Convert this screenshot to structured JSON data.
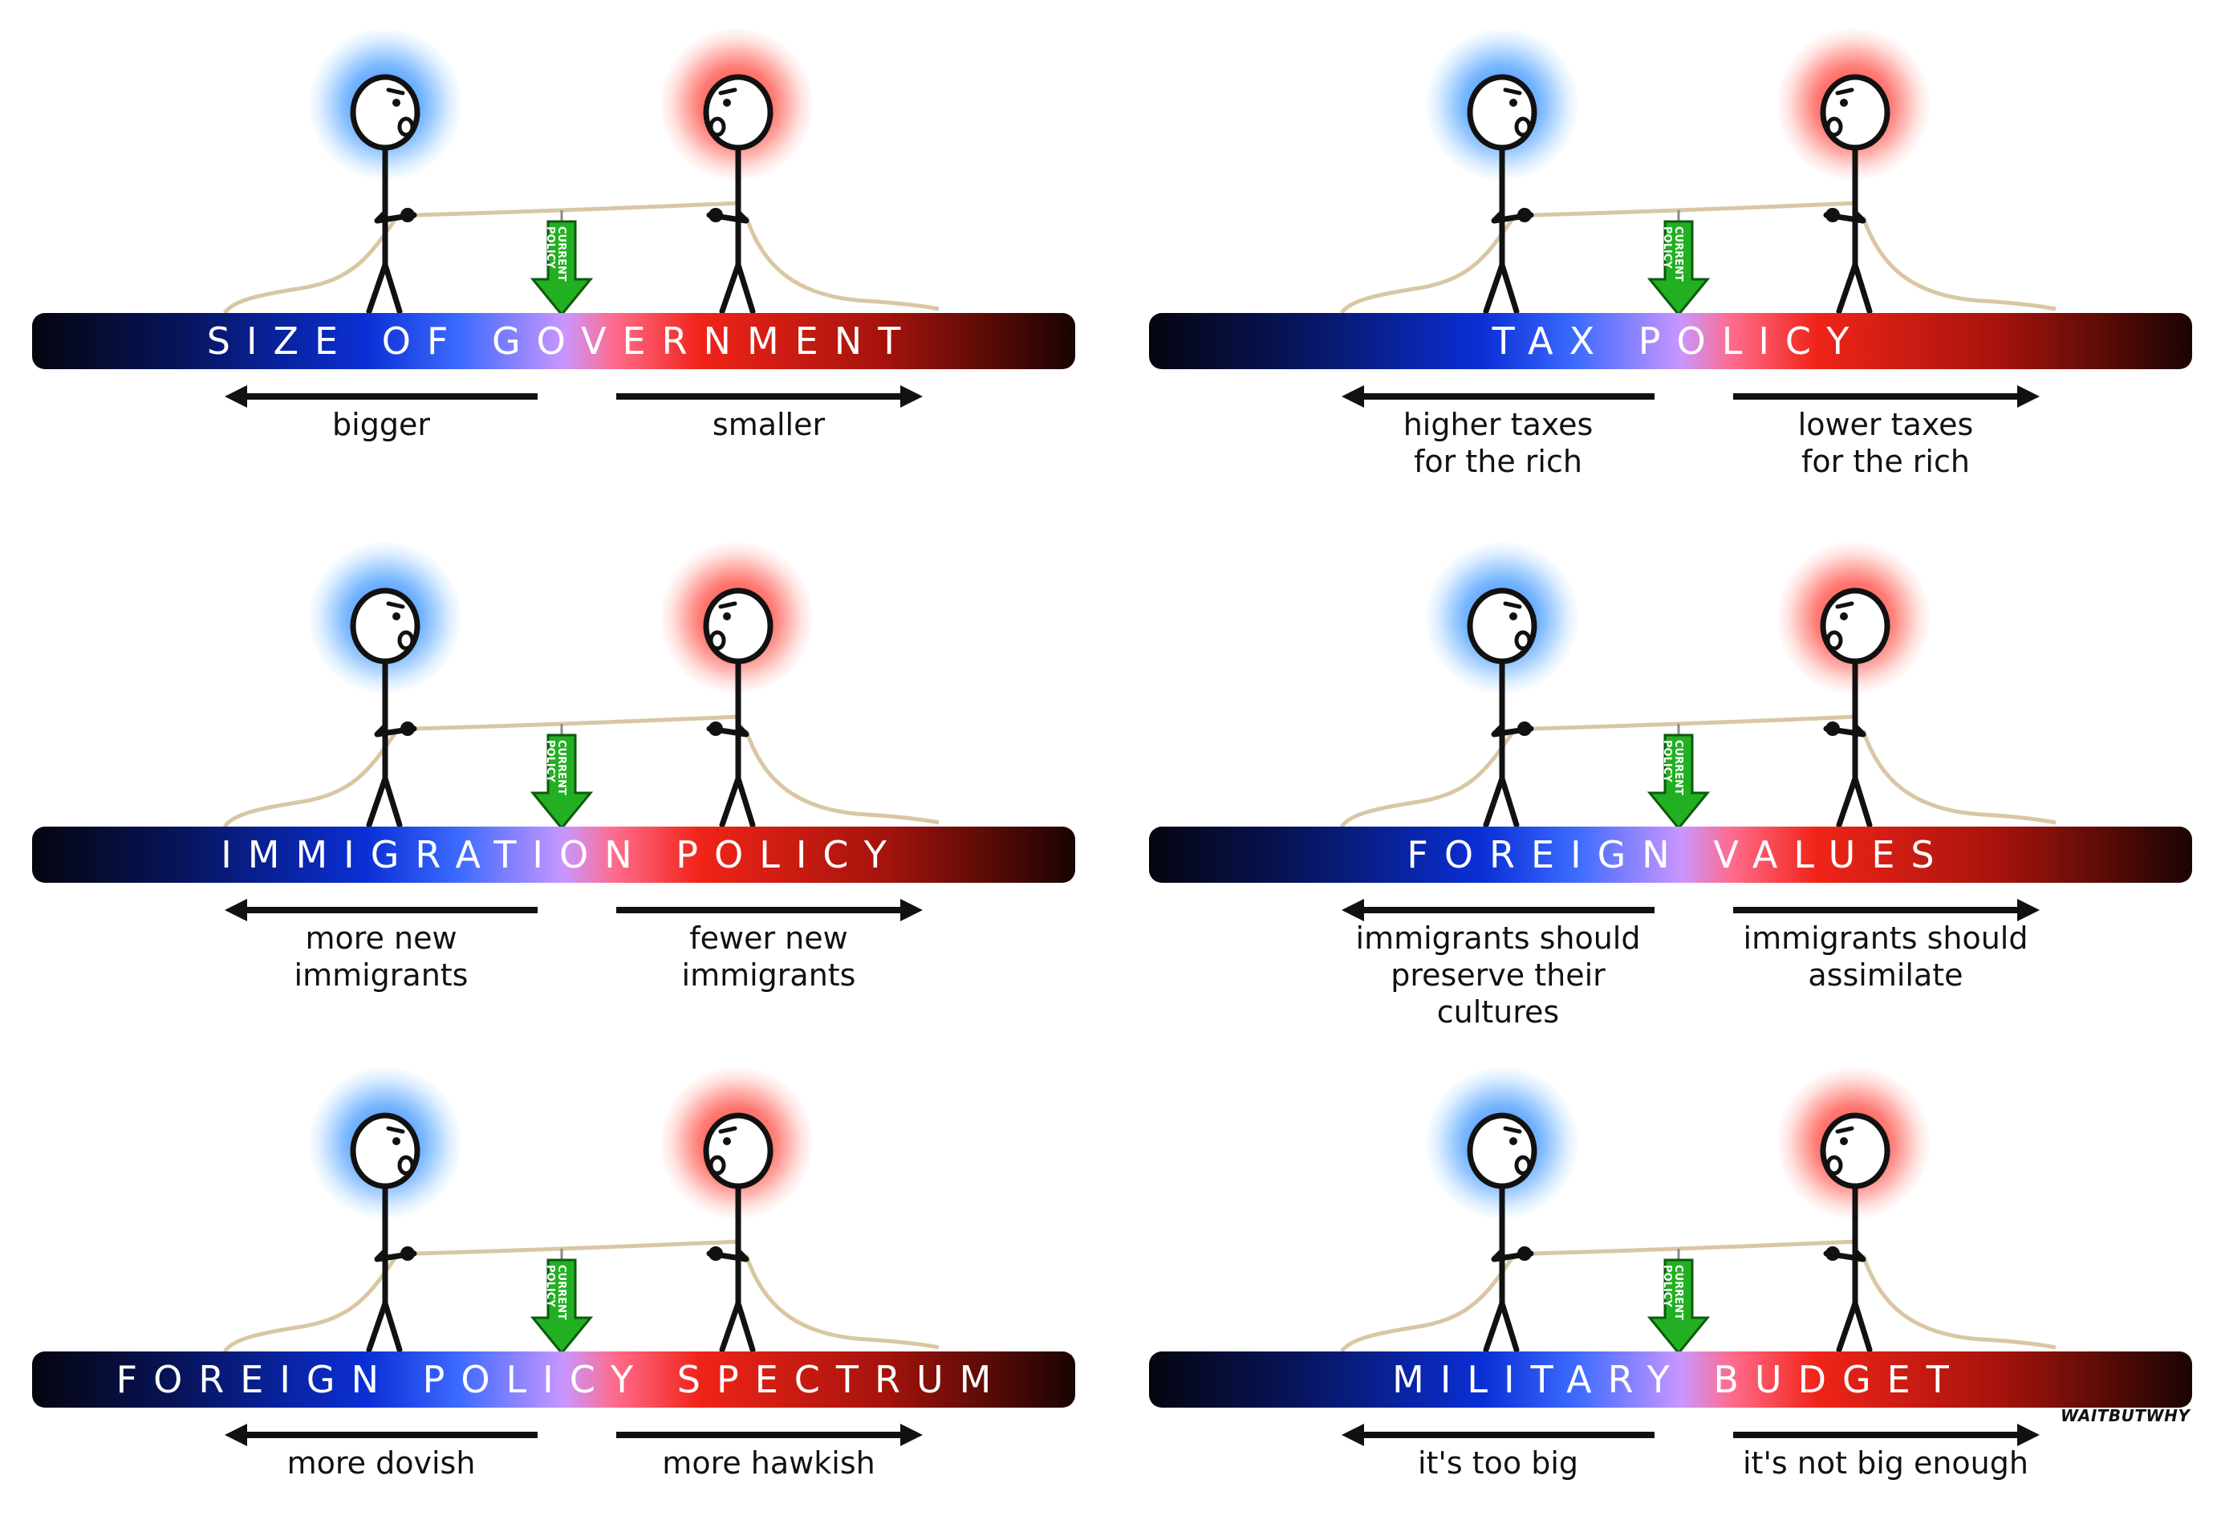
{
  "panels": [
    {
      "title": "SIZE OF GOVERNMENT",
      "left_label": "bigger",
      "right_label": "smaller",
      "tag_text": "CURRENT POLICY"
    },
    {
      "title": "TAX POLICY",
      "left_label": "higher taxes\nfor the rich",
      "right_label": "lower taxes\nfor the rich",
      "tag_text": "CURRENT POLICY"
    },
    {
      "title": "IMMIGRATION POLICY",
      "left_label": "more new\nimmigrants",
      "right_label": "fewer new\nimmigrants",
      "tag_text": "CURRENT POLICY"
    },
    {
      "title": "FOREIGN VALUES",
      "left_label": "immigrants should\npreserve their cultures",
      "right_label": "immigrants should\nassimilate",
      "tag_text": "CURRENT POLICY"
    },
    {
      "title": "FOREIGN POLICY SPECTRUM",
      "left_label": "more dovish",
      "right_label": "more hawkish",
      "tag_text": "CURRENT POLICY"
    },
    {
      "title": "MILITARY BUDGET",
      "left_label": "it's too big",
      "right_label": "it's not big enough",
      "tag_text": "CURRENT POLICY"
    }
  ],
  "brand": "WAITBUTWHY",
  "colors": {
    "left_glow": "#2878ff",
    "right_glow": "#ff2818",
    "arrow_tag": "#22b022",
    "rope": "#d9c7a3"
  }
}
